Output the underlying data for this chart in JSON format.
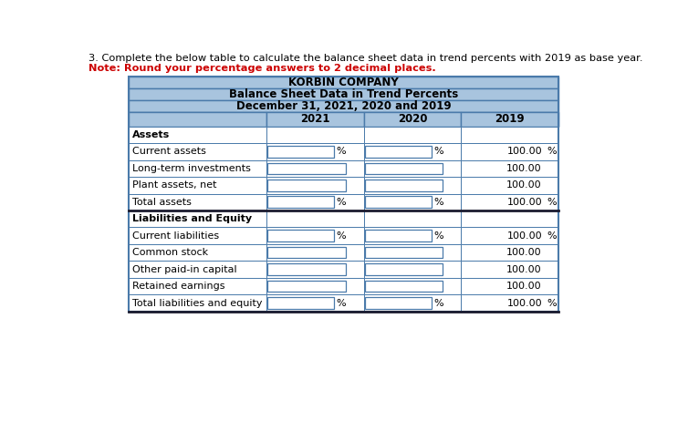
{
  "title1": "KORBIN COMPANY",
  "title2": "Balance Sheet Data in Trend Percents",
  "title3": "December 31, 2021, 2020 and 2019",
  "header_text": "3. Complete the below table to calculate the balance sheet data in trend percents with 2019 as base year.",
  "note_text": "Note: Round your percentage answers to 2 decimal places.",
  "col_headers": [
    "2021",
    "2020",
    "2019"
  ],
  "header_bg": "#a8c4de",
  "white_bg": "#ffffff",
  "border_color": "#4a7aaa",
  "thick_border": "#1a1a2e",
  "red_color": "#cc0000",
  "rows": [
    {
      "label": "Assets",
      "bold": true,
      "has_percent": false,
      "has_pct_col": false
    },
    {
      "label": "Current assets",
      "bold": false,
      "has_percent": true,
      "has_pct_col": true
    },
    {
      "label": "Long-term investments",
      "bold": false,
      "has_percent": false,
      "has_pct_col": false
    },
    {
      "label": "Plant assets, net",
      "bold": false,
      "has_percent": false,
      "has_pct_col": false
    },
    {
      "label": "Total assets",
      "bold": false,
      "has_percent": true,
      "has_pct_col": true,
      "thick_bottom": true
    },
    {
      "label": "Liabilities and Equity",
      "bold": true,
      "has_percent": false,
      "has_pct_col": false
    },
    {
      "label": "Current liabilities",
      "bold": false,
      "has_percent": true,
      "has_pct_col": true
    },
    {
      "label": "Common stock",
      "bold": false,
      "has_percent": false,
      "has_pct_col": false
    },
    {
      "label": "Other paid-in capital",
      "bold": false,
      "has_percent": false,
      "has_pct_col": false
    },
    {
      "label": "Retained earnings",
      "bold": false,
      "has_percent": false,
      "has_pct_col": false
    },
    {
      "label": "Total liabilities and equity",
      "bold": false,
      "has_percent": true,
      "has_pct_col": true,
      "thick_bottom": true
    }
  ],
  "fig_width": 7.54,
  "fig_height": 4.62,
  "dpi": 100
}
